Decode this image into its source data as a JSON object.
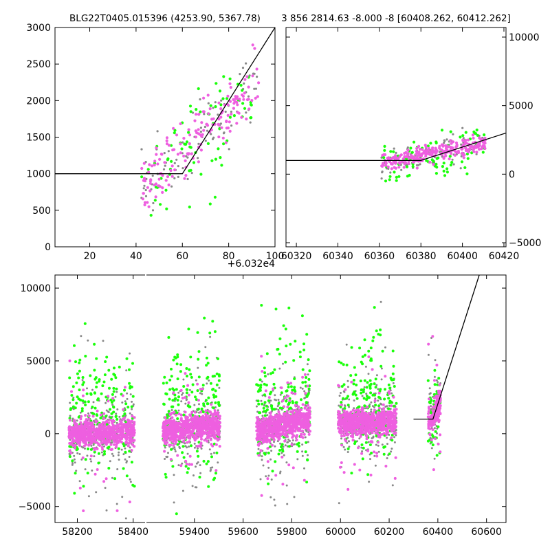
{
  "colors": {
    "background": "#ffffff",
    "points_magenta": "#ee5fe0",
    "points_green": "#1aff0a",
    "points_gray": "#888888",
    "model_line": "#000000",
    "frame": "#000000"
  },
  "chart_data": [
    {
      "id": "top-left",
      "type": "scatter",
      "title": "BLG22T0405.015396 (4253.90, 5367.78)",
      "xlabel": "",
      "ylabel": "",
      "x_offset_label": "+6.032e4",
      "xlim": [
        5,
        100
      ],
      "ylim": [
        0,
        3000
      ],
      "xticks": [
        20,
        40,
        60,
        80,
        100
      ],
      "xtick_labels": [
        "20",
        "40",
        "60",
        "80",
        "100"
      ],
      "yticks": [
        0,
        500,
        1000,
        1500,
        2000,
        2500,
        3000
      ],
      "ytick_labels": [
        "0",
        "500",
        "1000",
        "1500",
        "2000",
        "2500",
        "3000"
      ],
      "model_line": [
        [
          5,
          1000
        ],
        [
          60,
          1000
        ],
        [
          100,
          3000
        ]
      ],
      "grid": false
    },
    {
      "id": "top-right",
      "type": "scatter",
      "title": "3 856 2814.63 -8.000 -8 [60408.262, 60412.262]",
      "xlabel": "",
      "ylabel": "",
      "xlim": [
        60315,
        60421
      ],
      "ylim": [
        -5300,
        10700
      ],
      "xticks": [
        60320,
        60340,
        60360,
        60380,
        60400,
        60420
      ],
      "xtick_labels": [
        "60320",
        "60340",
        "60360",
        "60380",
        "60400",
        "60420"
      ],
      "yticks": [
        -5000,
        0,
        5000,
        10000
      ],
      "ytick_labels": [
        "−5000",
        "0",
        "5000",
        "10000"
      ],
      "yaxis_side": "right",
      "model_line": [
        [
          60315,
          1000
        ],
        [
          60380,
          1000
        ],
        [
          60421,
          3000
        ]
      ],
      "grid": false
    },
    {
      "id": "bottom",
      "type": "scatter",
      "title": "",
      "xlabel": "",
      "ylabel": "",
      "xlim": [
        58120,
        60680
      ],
      "ylim": [
        -6100,
        10900
      ],
      "xticks": [
        58200,
        58400,
        59400,
        59600,
        59800,
        60000,
        60200,
        60400,
        60600
      ],
      "xtick_labels": [
        "58200",
        "58400",
        "59400",
        "59600",
        "59800",
        "60000",
        "60200",
        "60400",
        "60600"
      ],
      "yticks": [
        -5000,
        0,
        5000,
        10000
      ],
      "ytick_labels": [
        "−5000",
        "0",
        "5000",
        "10000"
      ],
      "axis_break": true,
      "model_line": [
        [
          60300,
          1000
        ],
        [
          60380,
          1000
        ],
        [
          60570,
          10900
        ]
      ],
      "grid": false,
      "seasons": [
        {
          "start": 58170,
          "end": 58405,
          "trend_start": 0,
          "trend_end": 100
        },
        {
          "start": 59270,
          "end": 59505,
          "trend_start": 200,
          "trend_end": 600
        },
        {
          "start": 59655,
          "end": 59875,
          "trend_start": 150,
          "trend_end": 1000
        },
        {
          "start": 59990,
          "end": 60230,
          "trend_start": 800,
          "trend_end": 800
        },
        {
          "start": 60360,
          "end": 60411,
          "trend_start": 600,
          "trend_end": 2100
        }
      ],
      "series": [
        {
          "color": "magenta"
        },
        {
          "color": "green"
        },
        {
          "color": "gray"
        }
      ]
    }
  ]
}
